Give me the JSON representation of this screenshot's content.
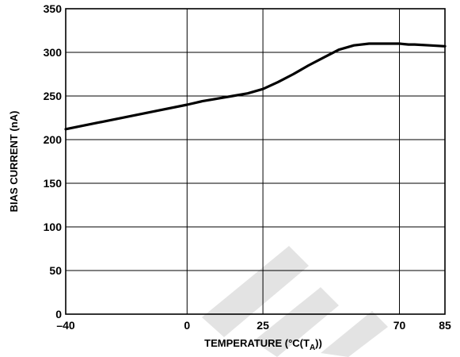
{
  "chart_data": {
    "type": "line",
    "title": "",
    "xlabel": {
      "prefix": "TEMPERATURE (°C(T",
      "subscript": "A",
      "suffix": "))"
    },
    "ylabel": "BIAS CURRENT (nA)",
    "xlim": [
      -40,
      85
    ],
    "ylim": [
      0,
      350
    ],
    "x_ticks": [
      -40,
      0,
      25,
      70,
      85
    ],
    "x_tick_labels": [
      "–40",
      "0",
      "25",
      "70",
      "85"
    ],
    "y_ticks": [
      0,
      50,
      100,
      150,
      200,
      250,
      300,
      350
    ],
    "y_tick_labels": [
      "0",
      "50",
      "100",
      "150",
      "200",
      "250",
      "300",
      "350"
    ],
    "grid": true,
    "series": [
      {
        "color": "#000000",
        "x": [
          -40,
          -30,
          -20,
          -10,
          0,
          5,
          10,
          15,
          20,
          25,
          30,
          35,
          40,
          45,
          50,
          55,
          60,
          65,
          70,
          73,
          75,
          80,
          85
        ],
        "y": [
          212,
          219,
          226,
          233,
          240,
          244,
          247,
          250,
          253,
          258,
          266,
          275,
          285,
          294,
          303,
          308,
          310,
          310,
          310,
          309,
          309,
          308,
          307
        ]
      }
    ]
  }
}
